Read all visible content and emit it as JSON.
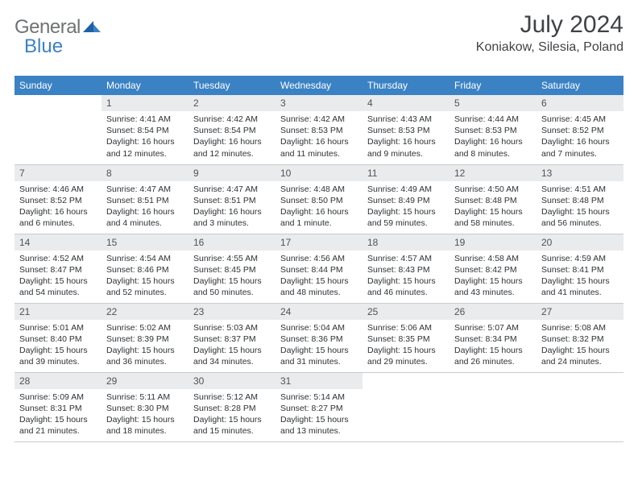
{
  "logo": {
    "gray": "General",
    "blue": "Blue"
  },
  "title": "July 2024",
  "location": "Koniakow, Silesia, Poland",
  "colors": {
    "header_bg": "#3b82c4",
    "header_text": "#ffffff",
    "daynum_bg": "#e9ebec",
    "body_text": "#2f3134",
    "title_text": "#404246",
    "logo_gray": "#707274",
    "logo_blue": "#3b82c4",
    "border": "#c7cbd0"
  },
  "weekdays": [
    "Sunday",
    "Monday",
    "Tuesday",
    "Wednesday",
    "Thursday",
    "Friday",
    "Saturday"
  ],
  "weeks": [
    [
      null,
      {
        "n": "1",
        "sr": "Sunrise: 4:41 AM",
        "ss": "Sunset: 8:54 PM",
        "d1": "Daylight: 16 hours",
        "d2": "and 12 minutes."
      },
      {
        "n": "2",
        "sr": "Sunrise: 4:42 AM",
        "ss": "Sunset: 8:54 PM",
        "d1": "Daylight: 16 hours",
        "d2": "and 12 minutes."
      },
      {
        "n": "3",
        "sr": "Sunrise: 4:42 AM",
        "ss": "Sunset: 8:53 PM",
        "d1": "Daylight: 16 hours",
        "d2": "and 11 minutes."
      },
      {
        "n": "4",
        "sr": "Sunrise: 4:43 AM",
        "ss": "Sunset: 8:53 PM",
        "d1": "Daylight: 16 hours",
        "d2": "and 9 minutes."
      },
      {
        "n": "5",
        "sr": "Sunrise: 4:44 AM",
        "ss": "Sunset: 8:53 PM",
        "d1": "Daylight: 16 hours",
        "d2": "and 8 minutes."
      },
      {
        "n": "6",
        "sr": "Sunrise: 4:45 AM",
        "ss": "Sunset: 8:52 PM",
        "d1": "Daylight: 16 hours",
        "d2": "and 7 minutes."
      }
    ],
    [
      {
        "n": "7",
        "sr": "Sunrise: 4:46 AM",
        "ss": "Sunset: 8:52 PM",
        "d1": "Daylight: 16 hours",
        "d2": "and 6 minutes."
      },
      {
        "n": "8",
        "sr": "Sunrise: 4:47 AM",
        "ss": "Sunset: 8:51 PM",
        "d1": "Daylight: 16 hours",
        "d2": "and 4 minutes."
      },
      {
        "n": "9",
        "sr": "Sunrise: 4:47 AM",
        "ss": "Sunset: 8:51 PM",
        "d1": "Daylight: 16 hours",
        "d2": "and 3 minutes."
      },
      {
        "n": "10",
        "sr": "Sunrise: 4:48 AM",
        "ss": "Sunset: 8:50 PM",
        "d1": "Daylight: 16 hours",
        "d2": "and 1 minute."
      },
      {
        "n": "11",
        "sr": "Sunrise: 4:49 AM",
        "ss": "Sunset: 8:49 PM",
        "d1": "Daylight: 15 hours",
        "d2": "and 59 minutes."
      },
      {
        "n": "12",
        "sr": "Sunrise: 4:50 AM",
        "ss": "Sunset: 8:48 PM",
        "d1": "Daylight: 15 hours",
        "d2": "and 58 minutes."
      },
      {
        "n": "13",
        "sr": "Sunrise: 4:51 AM",
        "ss": "Sunset: 8:48 PM",
        "d1": "Daylight: 15 hours",
        "d2": "and 56 minutes."
      }
    ],
    [
      {
        "n": "14",
        "sr": "Sunrise: 4:52 AM",
        "ss": "Sunset: 8:47 PM",
        "d1": "Daylight: 15 hours",
        "d2": "and 54 minutes."
      },
      {
        "n": "15",
        "sr": "Sunrise: 4:54 AM",
        "ss": "Sunset: 8:46 PM",
        "d1": "Daylight: 15 hours",
        "d2": "and 52 minutes."
      },
      {
        "n": "16",
        "sr": "Sunrise: 4:55 AM",
        "ss": "Sunset: 8:45 PM",
        "d1": "Daylight: 15 hours",
        "d2": "and 50 minutes."
      },
      {
        "n": "17",
        "sr": "Sunrise: 4:56 AM",
        "ss": "Sunset: 8:44 PM",
        "d1": "Daylight: 15 hours",
        "d2": "and 48 minutes."
      },
      {
        "n": "18",
        "sr": "Sunrise: 4:57 AM",
        "ss": "Sunset: 8:43 PM",
        "d1": "Daylight: 15 hours",
        "d2": "and 46 minutes."
      },
      {
        "n": "19",
        "sr": "Sunrise: 4:58 AM",
        "ss": "Sunset: 8:42 PM",
        "d1": "Daylight: 15 hours",
        "d2": "and 43 minutes."
      },
      {
        "n": "20",
        "sr": "Sunrise: 4:59 AM",
        "ss": "Sunset: 8:41 PM",
        "d1": "Daylight: 15 hours",
        "d2": "and 41 minutes."
      }
    ],
    [
      {
        "n": "21",
        "sr": "Sunrise: 5:01 AM",
        "ss": "Sunset: 8:40 PM",
        "d1": "Daylight: 15 hours",
        "d2": "and 39 minutes."
      },
      {
        "n": "22",
        "sr": "Sunrise: 5:02 AM",
        "ss": "Sunset: 8:39 PM",
        "d1": "Daylight: 15 hours",
        "d2": "and 36 minutes."
      },
      {
        "n": "23",
        "sr": "Sunrise: 5:03 AM",
        "ss": "Sunset: 8:37 PM",
        "d1": "Daylight: 15 hours",
        "d2": "and 34 minutes."
      },
      {
        "n": "24",
        "sr": "Sunrise: 5:04 AM",
        "ss": "Sunset: 8:36 PM",
        "d1": "Daylight: 15 hours",
        "d2": "and 31 minutes."
      },
      {
        "n": "25",
        "sr": "Sunrise: 5:06 AM",
        "ss": "Sunset: 8:35 PM",
        "d1": "Daylight: 15 hours",
        "d2": "and 29 minutes."
      },
      {
        "n": "26",
        "sr": "Sunrise: 5:07 AM",
        "ss": "Sunset: 8:34 PM",
        "d1": "Daylight: 15 hours",
        "d2": "and 26 minutes."
      },
      {
        "n": "27",
        "sr": "Sunrise: 5:08 AM",
        "ss": "Sunset: 8:32 PM",
        "d1": "Daylight: 15 hours",
        "d2": "and 24 minutes."
      }
    ],
    [
      {
        "n": "28",
        "sr": "Sunrise: 5:09 AM",
        "ss": "Sunset: 8:31 PM",
        "d1": "Daylight: 15 hours",
        "d2": "and 21 minutes."
      },
      {
        "n": "29",
        "sr": "Sunrise: 5:11 AM",
        "ss": "Sunset: 8:30 PM",
        "d1": "Daylight: 15 hours",
        "d2": "and 18 minutes."
      },
      {
        "n": "30",
        "sr": "Sunrise: 5:12 AM",
        "ss": "Sunset: 8:28 PM",
        "d1": "Daylight: 15 hours",
        "d2": "and 15 minutes."
      },
      {
        "n": "31",
        "sr": "Sunrise: 5:14 AM",
        "ss": "Sunset: 8:27 PM",
        "d1": "Daylight: 15 hours",
        "d2": "and 13 minutes."
      },
      null,
      null,
      null
    ]
  ]
}
